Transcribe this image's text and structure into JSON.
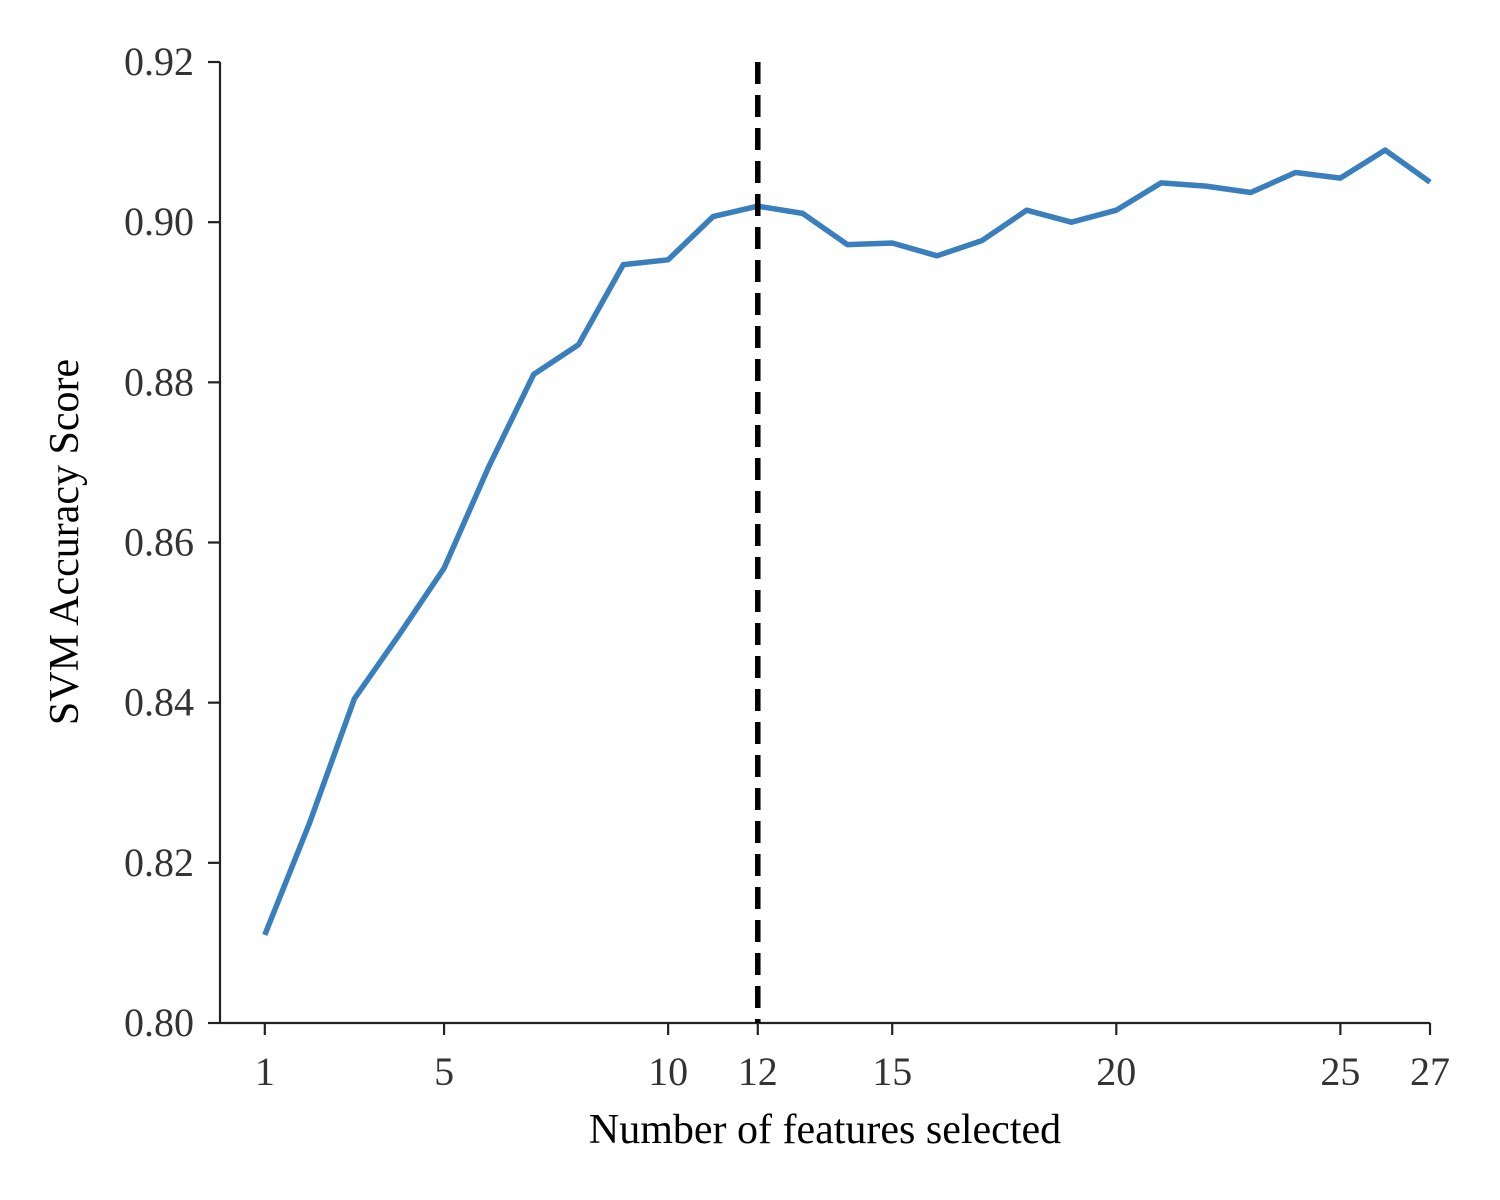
{
  "chart_data": {
    "type": "line",
    "xlabel": "Number of features selected",
    "ylabel": "SVM Accuracy Score",
    "xlim": [
      0,
      27
    ],
    "ylim": [
      0.8,
      0.92
    ],
    "x_ticks": [
      1,
      5,
      10,
      12,
      15,
      20,
      25,
      27
    ],
    "x_tick_labels": [
      "1",
      "5",
      "10",
      "12",
      "15",
      "20",
      "25",
      "27"
    ],
    "y_ticks": [
      0.8,
      0.82,
      0.84,
      0.86,
      0.88,
      0.9,
      0.92
    ],
    "y_tick_labels": [
      "0.80",
      "0.82",
      "0.84",
      "0.86",
      "0.88",
      "0.90",
      "0.92"
    ],
    "grid": false,
    "series": [
      {
        "color": "#3a7fbd",
        "x": [
          1,
          2,
          3,
          4,
          5,
          6,
          7,
          8,
          9,
          10,
          11,
          12,
          13,
          14,
          15,
          16,
          17,
          18,
          19,
          20,
          21,
          22,
          23,
          24,
          25,
          26,
          27
        ],
        "values": [
          0.811,
          0.825,
          0.8405,
          0.8485,
          0.8568,
          0.8695,
          0.881,
          0.8847,
          0.8947,
          0.8953,
          0.9007,
          0.902,
          0.9011,
          0.8972,
          0.8974,
          0.8958,
          0.8977,
          0.9015,
          0.9,
          0.9015,
          0.9049,
          0.9045,
          0.9037,
          0.9062,
          0.9055,
          0.909,
          0.905
        ]
      }
    ],
    "vline": {
      "x": 12,
      "style": "dashed",
      "color": "#000000"
    }
  }
}
